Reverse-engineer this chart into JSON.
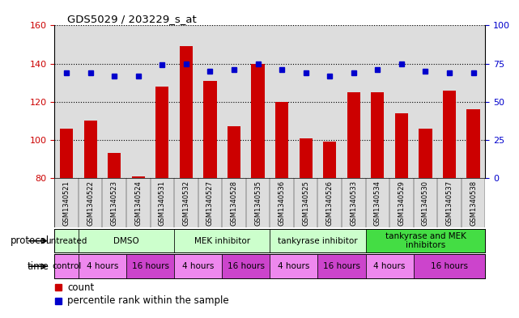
{
  "title": "GDS5029 / 203229_s_at",
  "samples": [
    "GSM1340521",
    "GSM1340522",
    "GSM1340523",
    "GSM1340524",
    "GSM1340531",
    "GSM1340532",
    "GSM1340527",
    "GSM1340528",
    "GSM1340535",
    "GSM1340536",
    "GSM1340525",
    "GSM1340526",
    "GSM1340533",
    "GSM1340534",
    "GSM1340529",
    "GSM1340530",
    "GSM1340537",
    "GSM1340538"
  ],
  "bar_values": [
    106,
    110,
    93,
    81,
    128,
    149,
    131,
    107,
    140,
    120,
    101,
    99,
    125,
    125,
    114,
    106,
    126,
    116
  ],
  "dot_values": [
    69,
    69,
    67,
    67,
    74,
    75,
    70,
    71,
    75,
    71,
    69,
    67,
    69,
    71,
    75,
    70,
    69,
    69
  ],
  "bar_color": "#cc0000",
  "dot_color": "#0000cc",
  "ylim_left": [
    80,
    160
  ],
  "ylim_right": [
    0,
    100
  ],
  "yticks_left": [
    80,
    100,
    120,
    140,
    160
  ],
  "yticks_right": [
    0,
    25,
    50,
    75,
    100
  ],
  "protocols": [
    {
      "label": "untreated",
      "start": 0,
      "end": 1
    },
    {
      "label": "DMSO",
      "start": 1,
      "end": 5
    },
    {
      "label": "MEK inhibitor",
      "start": 5,
      "end": 9
    },
    {
      "label": "tankyrase inhibitor",
      "start": 9,
      "end": 13
    },
    {
      "label": "tankyrase and MEK\ninhibitors",
      "start": 13,
      "end": 18
    }
  ],
  "proto_colors": [
    "#ccffcc",
    "#ccffcc",
    "#ccffcc",
    "#ccffcc",
    "#44dd44"
  ],
  "times": [
    {
      "label": "control",
      "start": 0,
      "end": 1
    },
    {
      "label": "4 hours",
      "start": 1,
      "end": 3
    },
    {
      "label": "16 hours",
      "start": 3,
      "end": 5
    },
    {
      "label": "4 hours",
      "start": 5,
      "end": 7
    },
    {
      "label": "16 hours",
      "start": 7,
      "end": 9
    },
    {
      "label": "4 hours",
      "start": 9,
      "end": 11
    },
    {
      "label": "16 hours",
      "start": 11,
      "end": 13
    },
    {
      "label": "4 hours",
      "start": 13,
      "end": 15
    },
    {
      "label": "16 hours",
      "start": 15,
      "end": 18
    }
  ],
  "time_colors_4": "#ee88ee",
  "time_colors_16": "#cc44cc",
  "time_control_color": "#ee88ee",
  "bg_color": "#ffffff",
  "col_bg": "#dddddd"
}
